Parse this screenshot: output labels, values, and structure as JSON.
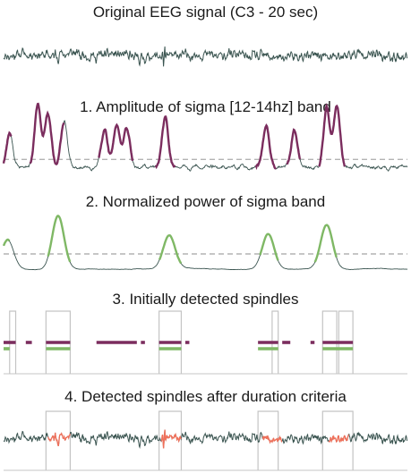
{
  "colors": {
    "eeg": "#3a5450",
    "amplitude_highlight": "#7b2d5e",
    "power_highlight": "#7fb865",
    "threshold": "#b3b3b3",
    "box": "#c4c4c4",
    "spindle": "#f0705a"
  },
  "chart_data": [
    {
      "type": "line",
      "title": "Original EEG signal (C3 - 20 sec)",
      "xlabel": "",
      "ylabel": "",
      "x_range": [
        0,
        20
      ],
      "series": [
        {
          "values_note": "",
          "seed": 11
        }
      ],
      "grid": false
    },
    {
      "type": "line",
      "title": "1. Amplitude of sigma [12-14hz] band",
      "threshold_relative": 0.5,
      "above_threshold_intervals": [
        [
          0.0,
          0.4
        ],
        [
          1.3,
          3.0
        ],
        [
          4.7,
          6.4
        ],
        [
          7.5,
          8.5
        ],
        [
          12.5,
          13.5
        ],
        [
          14.0,
          14.7
        ],
        [
          15.6,
          16.9
        ]
      ],
      "peaks": [
        [
          0.3,
          0.55
        ],
        [
          1.7,
          1.0
        ],
        [
          2.2,
          0.85
        ],
        [
          3.0,
          0.75
        ],
        [
          5.0,
          0.6
        ],
        [
          5.6,
          0.7
        ],
        [
          6.1,
          0.62
        ],
        [
          8.0,
          0.8
        ],
        [
          13.0,
          0.65
        ],
        [
          14.4,
          0.58
        ],
        [
          16.0,
          0.95
        ],
        [
          16.5,
          1.0
        ]
      ],
      "grid": false
    },
    {
      "type": "line",
      "title": "2. Normalized power of sigma band",
      "threshold_relative": 0.4,
      "above_threshold_intervals": [
        [
          0.0,
          0.3
        ],
        [
          2.2,
          3.3
        ],
        [
          7.7,
          8.8
        ],
        [
          12.7,
          13.6
        ],
        [
          15.4,
          16.5
        ]
      ],
      "peaks": [
        [
          0.2,
          0.55
        ],
        [
          2.7,
          1.0
        ],
        [
          8.2,
          0.62
        ],
        [
          13.1,
          0.65
        ],
        [
          16.0,
          0.82
        ]
      ],
      "grid": false
    },
    {
      "type": "line",
      "title": "3. Initially detected spindles",
      "amplitude_detections": [
        [
          0.0,
          0.6
        ],
        [
          1.1,
          1.4
        ],
        [
          2.1,
          3.3
        ],
        [
          4.6,
          6.6
        ],
        [
          6.8,
          7.0
        ],
        [
          7.7,
          8.8
        ],
        [
          9.0,
          9.2
        ],
        [
          12.6,
          13.6
        ],
        [
          13.8,
          14.2
        ],
        [
          15.2,
          15.4
        ],
        [
          15.8,
          17.3
        ]
      ],
      "power_detections": [
        [
          0.0,
          0.3
        ],
        [
          2.1,
          3.3
        ],
        [
          7.7,
          8.8
        ],
        [
          12.6,
          13.6
        ],
        [
          15.8,
          17.3
        ]
      ],
      "boxes": [
        [
          0.3,
          0.6
        ],
        [
          2.1,
          3.3
        ],
        [
          7.7,
          8.8
        ],
        [
          13.3,
          13.6
        ],
        [
          15.8,
          16.5
        ],
        [
          16.6,
          17.3
        ]
      ],
      "grid": false
    },
    {
      "type": "line",
      "title": "4. Detected spindles after duration criteria",
      "spindle_intervals": [
        [
          2.2,
          3.3
        ],
        [
          7.8,
          8.8
        ],
        [
          12.8,
          13.8
        ],
        [
          16.1,
          17.1
        ]
      ],
      "boxes": [
        [
          2.1,
          3.3
        ],
        [
          7.7,
          8.8
        ],
        [
          12.6,
          13.6
        ],
        [
          15.8,
          17.3
        ]
      ],
      "grid": false
    }
  ]
}
